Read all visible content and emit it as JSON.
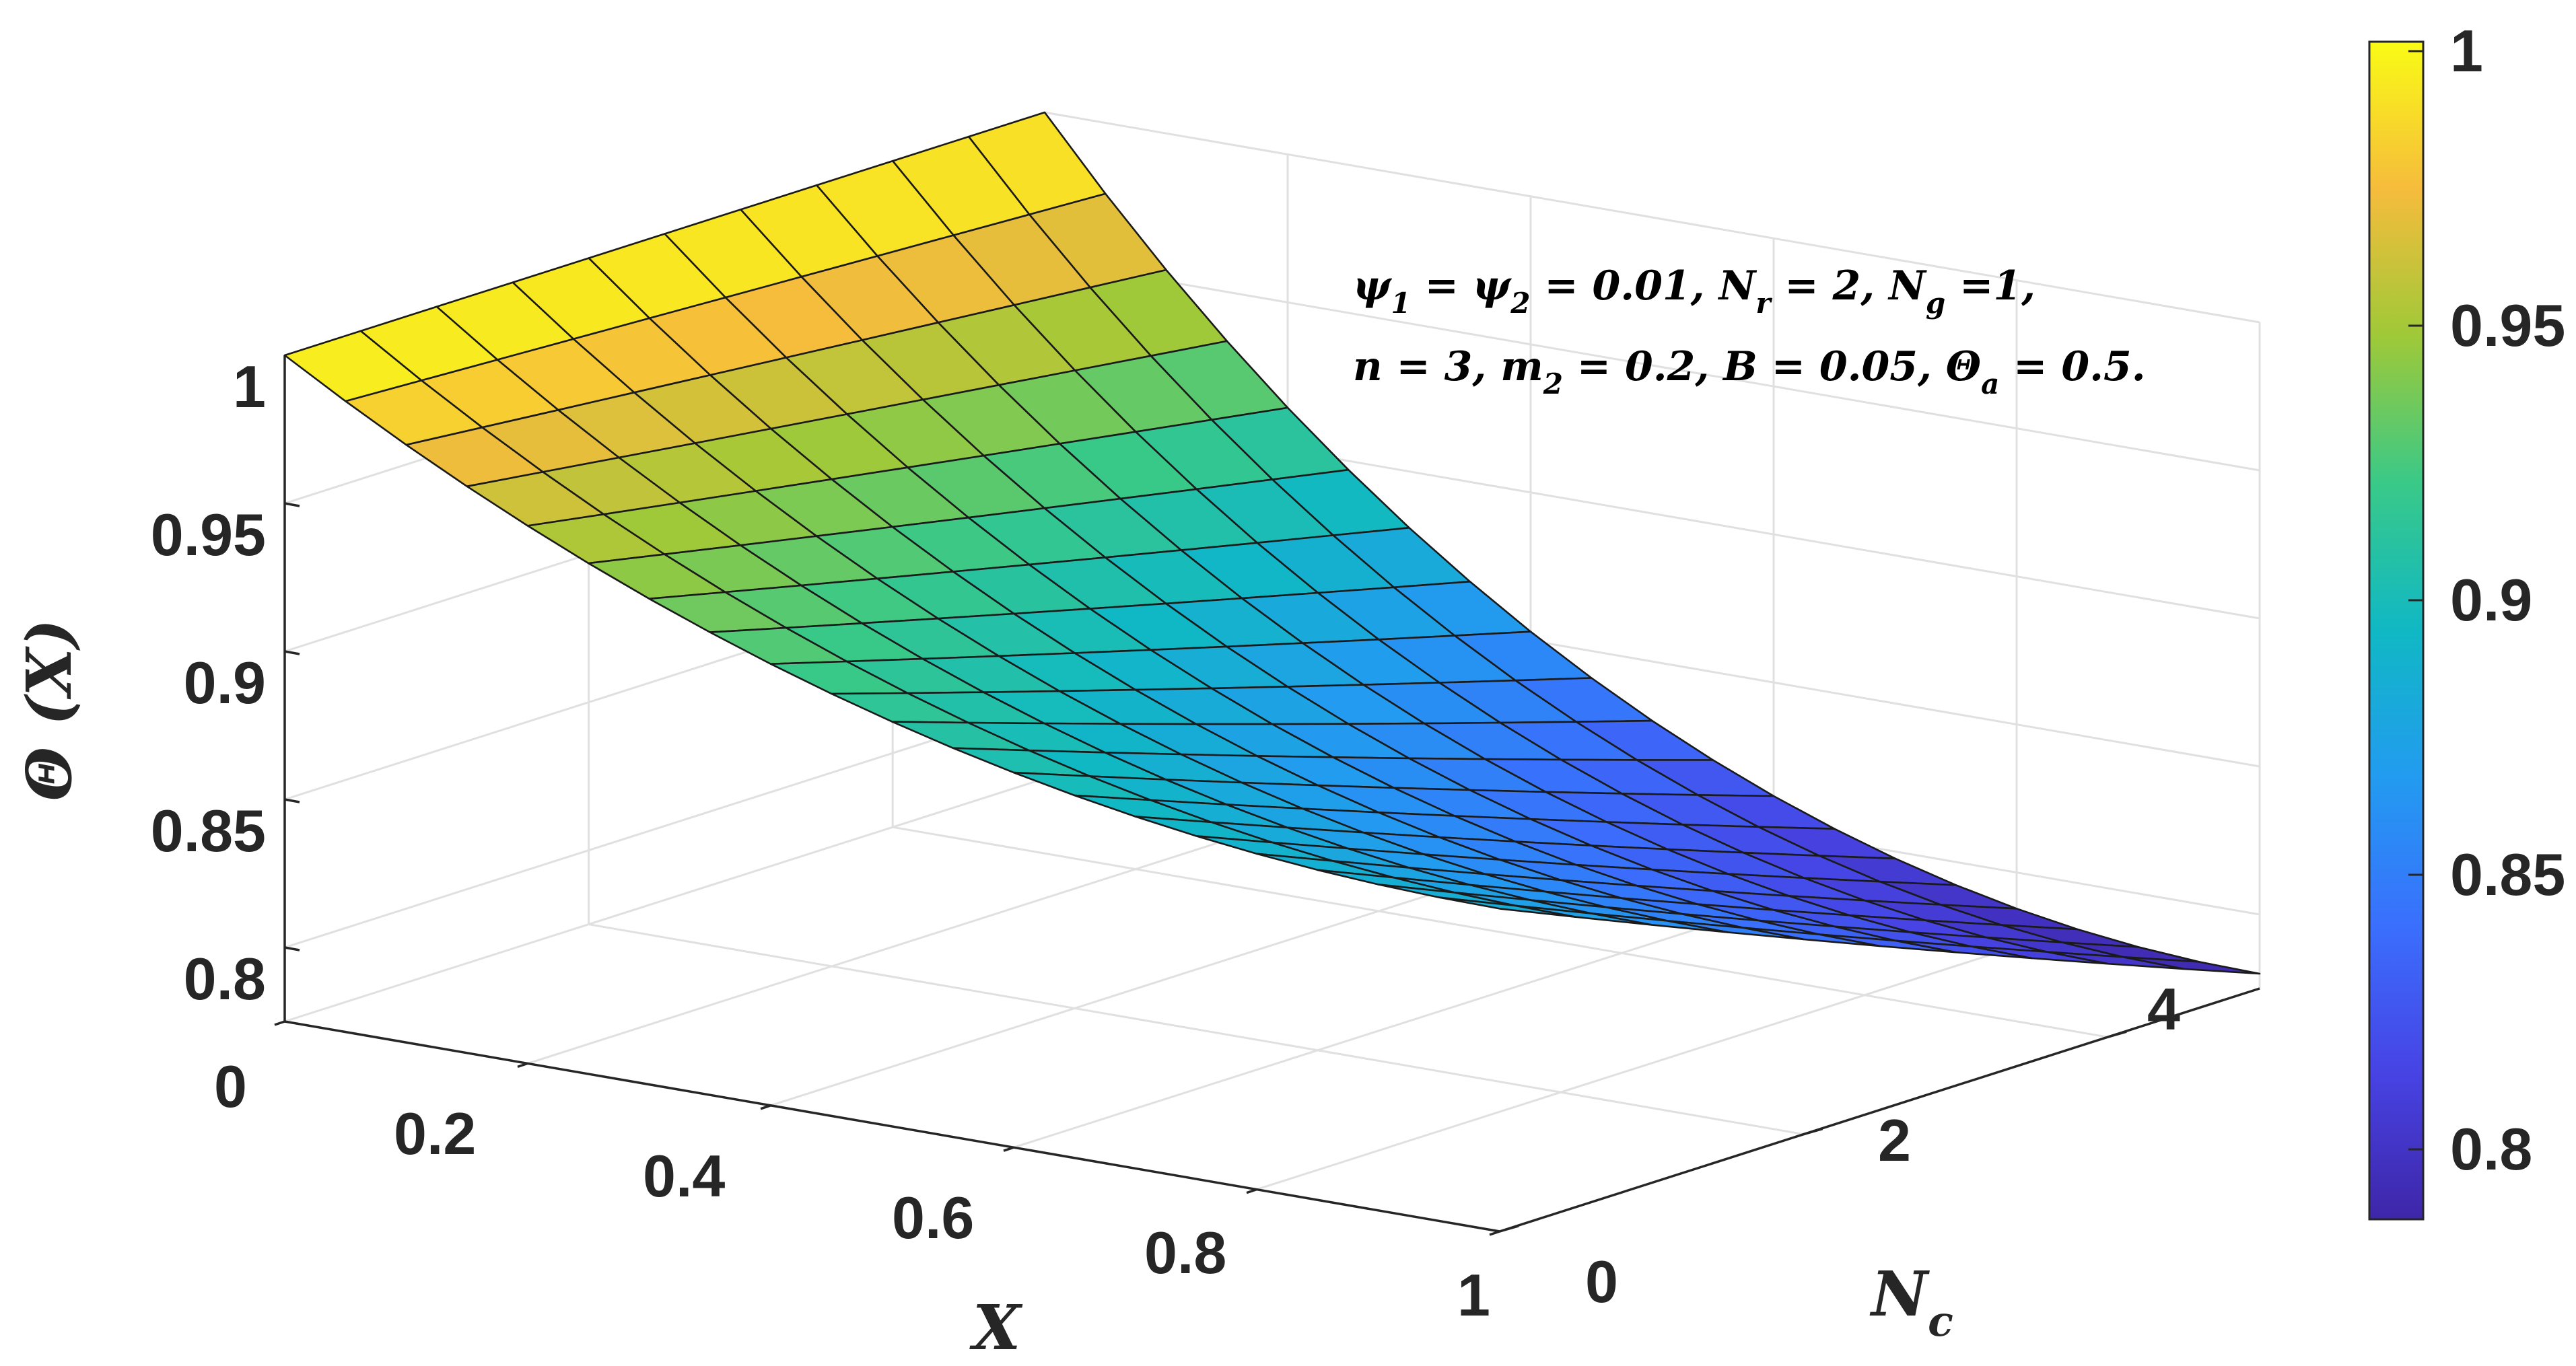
{
  "chart_data": {
    "type": "surface",
    "x": [
      0.0,
      0.05,
      0.1,
      0.15,
      0.2,
      0.25,
      0.3,
      0.35,
      0.4,
      0.45,
      0.5,
      0.55,
      0.6,
      0.65,
      0.7,
      0.75,
      0.8,
      0.85,
      0.9,
      0.95,
      1.0
    ],
    "nc": [
      0,
      0.5,
      1,
      1.5,
      2,
      2.5,
      3,
      3.5,
      4,
      4.5,
      5
    ],
    "theta_at_x1_nc0": 0.884,
    "theta_at_x1_nc5": 0.78,
    "theta_at_x0": 1,
    "xlabel": "X",
    "ylabel": "N",
    "ylabel_sub": "c",
    "zlabel": "Θ (X)",
    "x_ticks": [
      "0",
      "0.2",
      "0.4",
      "0.6",
      "0.8",
      "1"
    ],
    "nc_ticks": [
      "0",
      "2",
      "4"
    ],
    "z_ticks": [
      "0.8",
      "0.85",
      "0.9",
      "0.95",
      "1"
    ],
    "colorbar_ticks": [
      "0.8",
      "0.85",
      "0.9",
      "0.95",
      "1"
    ],
    "xlim": [
      0,
      1
    ],
    "ylim": [
      0,
      5
    ],
    "zlim": [
      0.775,
      1
    ],
    "clim": [
      0.78,
      1
    ],
    "colormap": "parula",
    "grid": true,
    "annotation": {
      "line1": {
        "p1": "ψ",
        "s1": "1",
        "p2": " = ψ",
        "s2": "2",
        "p3": " = 0.01, N",
        "s3": "r",
        "p4": " = 2, N",
        "s4": "g",
        "p5": " =1,"
      },
      "line2": {
        "p1": "n = 3, m",
        "s1": "2",
        "p2": " = 0.2, B = 0.05,  Θ",
        "s2": "a",
        "p3": " = 0.5."
      }
    }
  },
  "colors": {
    "mesh": "#1a1a1a",
    "axis": "#262626",
    "grid": "#e0e0e0"
  }
}
